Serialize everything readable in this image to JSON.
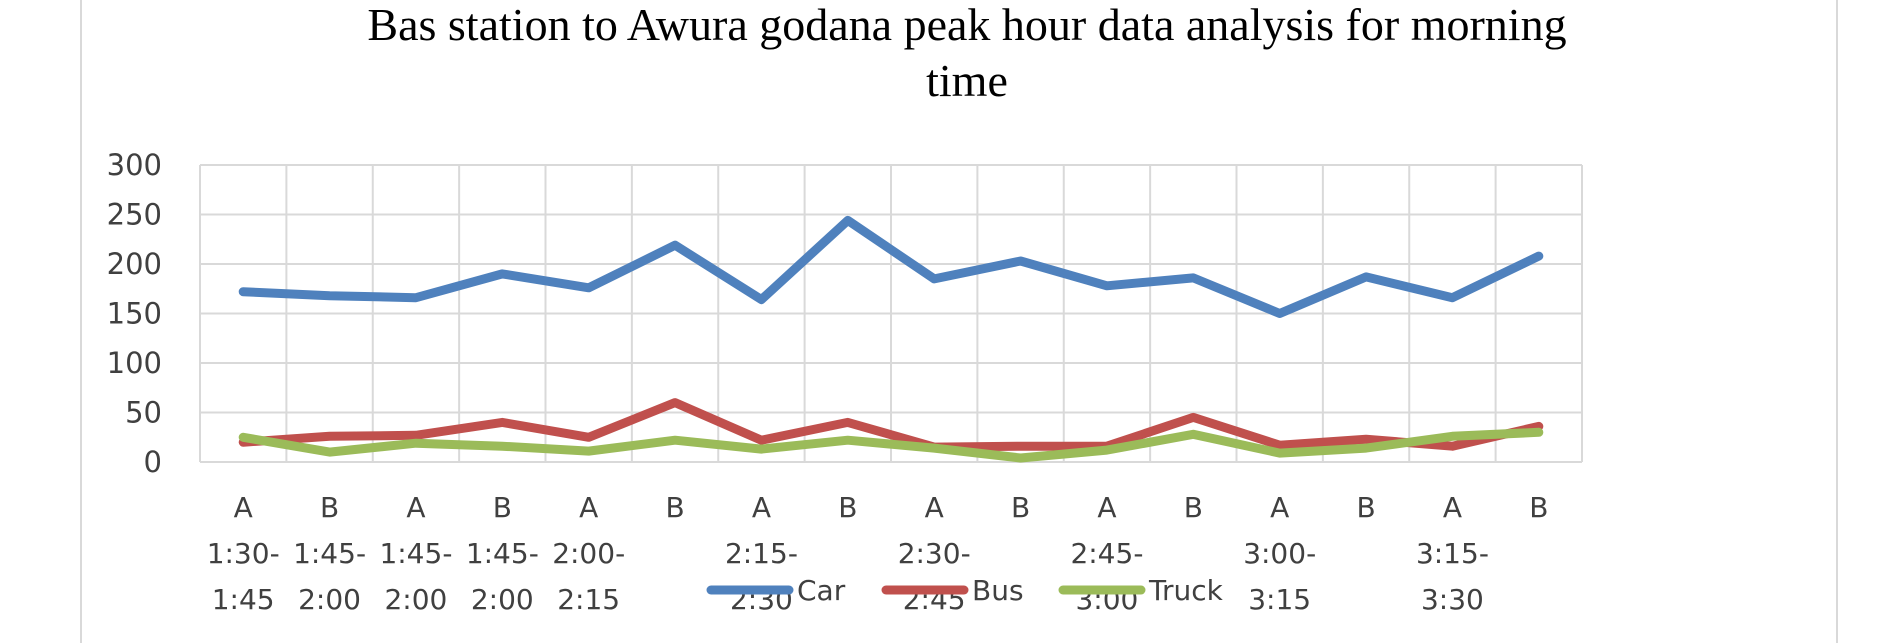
{
  "chart_data": {
    "type": "line",
    "title_lines": [
      "Bas station to Awura godana peak hour data analysis for morning",
      "time"
    ],
    "categories": [
      {
        "group": "A",
        "time": [
          "1:30-",
          "1:45"
        ]
      },
      {
        "group": "B",
        "time": [
          "1:45-",
          "2:00"
        ]
      },
      {
        "group": "A",
        "time": [
          "1:45-",
          "2:00"
        ]
      },
      {
        "group": "B",
        "time": [
          "1:45-",
          "2:00"
        ]
      },
      {
        "group": "A",
        "time": [
          "2:00-",
          "2:15"
        ]
      },
      {
        "group": "B",
        "time": []
      },
      {
        "group": "A",
        "time": [
          "2:15-",
          "2:30"
        ]
      },
      {
        "group": "B",
        "time": []
      },
      {
        "group": "A",
        "time": [
          "2:30-",
          "2:45"
        ]
      },
      {
        "group": "B",
        "time": []
      },
      {
        "group": "A",
        "time": [
          "2:45-",
          "3:00"
        ]
      },
      {
        "group": "B",
        "time": []
      },
      {
        "group": "A",
        "time": [
          "3:00-",
          "3:15"
        ]
      },
      {
        "group": "B",
        "time": []
      },
      {
        "group": "A",
        "time": [
          "3:15-",
          "3:30"
        ]
      },
      {
        "group": "B",
        "time": []
      }
    ],
    "series": [
      {
        "name": "Car",
        "color": "#4f81bd",
        "values": [
          172,
          168,
          166,
          190,
          176,
          219,
          164,
          244,
          185,
          203,
          178,
          186,
          150,
          187,
          166,
          208
        ]
      },
      {
        "name": "Bus",
        "color": "#c0504d",
        "values": [
          20,
          26,
          27,
          40,
          25,
          60,
          22,
          40,
          15,
          16,
          16,
          45,
          17,
          23,
          16,
          36
        ]
      },
      {
        "name": "Truck",
        "color": "#9bbb59",
        "values": [
          25,
          10,
          19,
          16,
          11,
          22,
          13,
          22,
          14,
          4,
          12,
          28,
          9,
          14,
          26,
          30
        ]
      }
    ],
    "ylim": [
      0,
      300
    ],
    "yticks": [
      0,
      50,
      100,
      150,
      200,
      250,
      300
    ],
    "grid": true,
    "legend_position": "bottom"
  }
}
